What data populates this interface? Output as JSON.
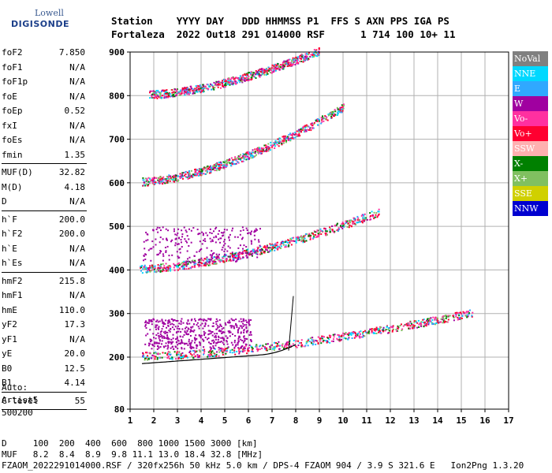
{
  "logo": {
    "top": "Lowell",
    "bottom": "DIGISONDE"
  },
  "header": {
    "line1": "Station    YYYY DAY   DDD HHMMSS P1  FFS S AXN PPS IGA PS",
    "line2": "Fortaleza  2022 Out18 291 014000 RSF      1 714 100 10+ 11"
  },
  "params": [
    {
      "label": "foF2",
      "value": "7.850"
    },
    {
      "label": "foF1",
      "value": "N/A"
    },
    {
      "label": "foF1p",
      "value": "N/A"
    },
    {
      "label": "foE",
      "value": "N/A"
    },
    {
      "label": "foEp",
      "value": "0.52"
    },
    {
      "label": "fxI",
      "value": "N/A"
    },
    {
      "label": "foEs",
      "value": "N/A"
    },
    {
      "label": "fmin",
      "value": "1.35"
    },
    {
      "sep": true
    },
    {
      "label": "MUF(D)",
      "value": "32.82"
    },
    {
      "label": "M(D)",
      "value": "4.18"
    },
    {
      "label": "D",
      "value": "N/A"
    },
    {
      "sep": true
    },
    {
      "label": "h`F",
      "value": "200.0"
    },
    {
      "label": "h`F2",
      "value": "200.0"
    },
    {
      "label": "h`E",
      "value": "N/A"
    },
    {
      "label": "h`Es",
      "value": "N/A"
    },
    {
      "sep": true
    },
    {
      "label": "hmF2",
      "value": "215.8"
    },
    {
      "label": "hmF1",
      "value": "N/A"
    },
    {
      "label": "hmE",
      "value": "110.0"
    },
    {
      "label": "yF2",
      "value": "17.3"
    },
    {
      "label": "yF1",
      "value": "N/A"
    },
    {
      "label": "yE",
      "value": "20.0"
    },
    {
      "label": "B0",
      "value": "12.5"
    },
    {
      "label": "B1",
      "value": "4.14"
    },
    {
      "sep": true
    },
    {
      "label": "C-level",
      "value": "55"
    },
    {
      "sep": true
    }
  ],
  "auto": {
    "line1": "Auto:",
    "line2": "Artist5",
    "line3": "500200"
  },
  "legend": [
    {
      "label": "NoVal",
      "color": "#808080"
    },
    {
      "label": "NNE",
      "color": "#00d8ff"
    },
    {
      "label": "E",
      "color": "#30a8ff"
    },
    {
      "label": "W",
      "color": "#a000a0"
    },
    {
      "label": "Vo-",
      "color": "#ff30a0"
    },
    {
      "label": "Vo+",
      "color": "#ff0030"
    },
    {
      "label": "SSW",
      "color": "#ffb0b0"
    },
    {
      "label": "X-",
      "color": "#008000"
    },
    {
      "label": "X+",
      "color": "#80c060"
    },
    {
      "label": "SSE",
      "color": "#d0d000"
    },
    {
      "label": "NNW",
      "color": "#0000d0"
    }
  ],
  "footer": {
    "line1": "D     100  200  400  600  800 1000 1500 3000 [km]",
    "line2": "MUF   8.2  8.4  8.9  9.8 11.1 13.0 18.4 32.8 [MHz]",
    "line3": "FZAOM_2022291014000.RSF / 320fx256h 50 kHz 5.0 km / DPS-4 FZAOM 904 / 3.9 S 321.6 E   Ion2Png 1.3.20"
  },
  "chart_data": {
    "type": "scatter",
    "x_ticks": [
      "1",
      "2",
      "3",
      "4",
      "5",
      "6",
      "7",
      "8",
      "9",
      "10",
      "11",
      "12",
      "13",
      "14",
      "15",
      "16",
      "17"
    ],
    "y_ticks": [
      "80",
      "200",
      "300",
      "400",
      "500",
      "600",
      "700",
      "800",
      "900"
    ],
    "xlim": [
      1,
      17
    ],
    "ylim": [
      80,
      900
    ],
    "traces": [
      {
        "name": "F-layer 1st hop",
        "x_start": 1.5,
        "x_end": 15.5,
        "y_start": 200,
        "y_end": 300
      },
      {
        "name": "F-layer 2nd hop",
        "x_start": 1.4,
        "x_end": 11.5,
        "y_start": 400,
        "y_end": 530
      },
      {
        "name": "F-layer 3rd hop",
        "x_start": 1.5,
        "x_end": 10.0,
        "y_start": 600,
        "y_end": 770
      },
      {
        "name": "F-layer 4th hop",
        "x_start": 1.8,
        "x_end": 9.0,
        "y_start": 800,
        "y_end": 900
      }
    ]
  }
}
